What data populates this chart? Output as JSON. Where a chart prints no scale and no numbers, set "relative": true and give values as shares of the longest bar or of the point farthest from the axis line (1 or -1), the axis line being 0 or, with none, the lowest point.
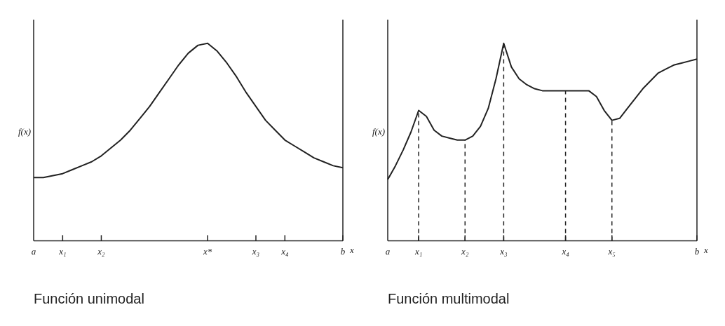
{
  "chart_data": [
    {
      "type": "line",
      "title": "Función unimodal",
      "xlabel": "x",
      "ylabel": "f(x)",
      "relative": true,
      "grid": false,
      "legend": false,
      "marker": "none",
      "line_style": "solid",
      "categories": [
        "a",
        null,
        null,
        "x₁",
        null,
        null,
        null,
        "x₂",
        null,
        null,
        null,
        null,
        null,
        null,
        null,
        null,
        null,
        null,
        "x*",
        null,
        null,
        null,
        null,
        "x₃",
        null,
        null,
        "x₄",
        null,
        null,
        null,
        null,
        null,
        "b"
      ],
      "series": [
        {
          "color": "#222222",
          "values": [
            0.32,
            0.32,
            0.33,
            0.34,
            0.36,
            0.38,
            0.4,
            0.43,
            0.47,
            0.51,
            0.56,
            0.62,
            0.68,
            0.75,
            0.82,
            0.89,
            0.95,
            0.99,
            1,
            0.96,
            0.9,
            0.83,
            0.75,
            0.68,
            0.61,
            0.56,
            0.51,
            0.48,
            0.45,
            0.42,
            0.4,
            0.38,
            0.37
          ]
        }
      ],
      "ref_lines": [
        {
          "axis": "x",
          "value": "b",
          "line_style": "solid"
        }
      ]
    },
    {
      "type": "line",
      "title": "Función multimodal",
      "xlabel": "x",
      "ylabel": "f(x)",
      "relative": true,
      "grid": false,
      "legend": false,
      "marker": "none",
      "line_style": "solid",
      "categories": [
        "a",
        null,
        null,
        null,
        "x₁",
        null,
        null,
        null,
        null,
        null,
        "x₂",
        null,
        null,
        null,
        null,
        "x₃",
        null,
        null,
        null,
        null,
        null,
        null,
        null,
        "x₄",
        null,
        null,
        null,
        null,
        null,
        "x₅",
        null,
        null,
        null,
        null,
        null,
        null,
        null,
        null,
        null,
        null,
        "b"
      ],
      "series": [
        {
          "color": "#222222",
          "values": [
            0.31,
            0.38,
            0.46,
            0.55,
            0.66,
            0.63,
            0.56,
            0.53,
            0.52,
            0.51,
            0.51,
            0.53,
            0.58,
            0.67,
            0.82,
            1,
            0.88,
            0.82,
            0.79,
            0.77,
            0.76,
            0.76,
            0.76,
            0.76,
            0.76,
            0.76,
            0.76,
            0.73,
            0.66,
            0.61,
            0.62,
            0.67,
            0.72,
            0.77,
            0.81,
            0.85,
            0.87,
            0.89,
            0.9,
            0.91,
            0.92
          ]
        }
      ],
      "ref_lines": [
        {
          "axis": "x",
          "value": "x₁",
          "line_style": "dashed"
        },
        {
          "axis": "x",
          "value": "x₂",
          "line_style": "dashed"
        },
        {
          "axis": "x",
          "value": "x₃",
          "line_style": "dashed"
        },
        {
          "axis": "x",
          "value": "x₄",
          "line_style": "dashed"
        },
        {
          "axis": "x",
          "value": "x₅",
          "line_style": "dashed"
        },
        {
          "axis": "x",
          "value": "b",
          "line_style": "solid"
        }
      ]
    }
  ]
}
